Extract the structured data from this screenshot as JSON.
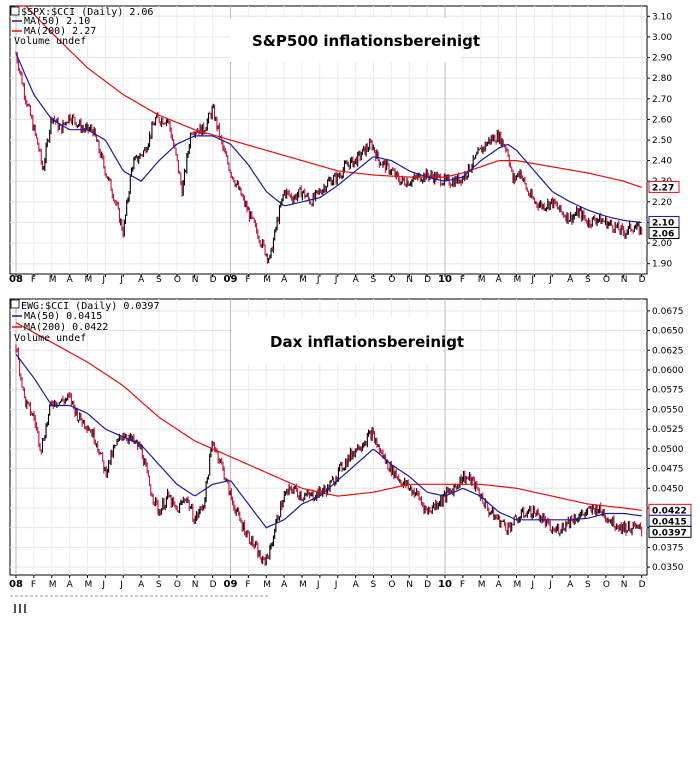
{
  "chart_data": [
    {
      "type": "line",
      "title": "S&P500 inflationsbereinigt",
      "legend": {
        "main": "$SPX:$CCI (Daily) 2.06",
        "ma50": "MA(50) 2.10",
        "ma200": "MA(200) 2.27",
        "volume": "Volume undef"
      },
      "colors": {
        "price": "#000000",
        "down": "#c0143c",
        "ma50": "#1a1aa0",
        "ma200": "#e01010"
      },
      "ylim": [
        1.85,
        3.15
      ],
      "yticks": [
        "3.10",
        "3.00",
        "2.90",
        "2.80",
        "2.70",
        "2.60",
        "2.50",
        "2.40",
        "2.30",
        "2.20",
        "2.10",
        "2.00",
        "1.90"
      ],
      "last_labels": {
        "ma200": "2.27",
        "ma50": "2.10",
        "price": "2.06"
      },
      "x_labels": [
        "08",
        "F",
        "M",
        "A",
        "M",
        "J",
        "J",
        "A",
        "S",
        "O",
        "N",
        "D",
        "09",
        "F",
        "M",
        "A",
        "M",
        "J",
        "J",
        "A",
        "S",
        "O",
        "N",
        "D",
        "10",
        "F",
        "M",
        "A",
        "M",
        "J",
        "J",
        "A",
        "S",
        "O",
        "N",
        "D"
      ],
      "price_anchors": [
        [
          0,
          2.92
        ],
        [
          0.5,
          2.72
        ],
        [
          1.3,
          2.45
        ],
        [
          1.5,
          2.35
        ],
        [
          2.0,
          2.62
        ],
        [
          2.5,
          2.55
        ],
        [
          3.0,
          2.62
        ],
        [
          3.8,
          2.55
        ],
        [
          4.3,
          2.55
        ],
        [
          5.0,
          2.35
        ],
        [
          5.5,
          2.22
        ],
        [
          6.0,
          2.05
        ],
        [
          6.5,
          2.38
        ],
        [
          7.2,
          2.45
        ],
        [
          7.8,
          2.6
        ],
        [
          8.5,
          2.6
        ],
        [
          9.0,
          2.4
        ],
        [
          9.3,
          2.25
        ],
        [
          9.8,
          2.55
        ],
        [
          10.5,
          2.55
        ],
        [
          11.0,
          2.65
        ],
        [
          11.6,
          2.45
        ],
        [
          12.0,
          2.35
        ],
        [
          12.5,
          2.25
        ],
        [
          13.0,
          2.15
        ],
        [
          13.5,
          2.05
        ],
        [
          14.0,
          1.95
        ],
        [
          14.2,
          1.92
        ],
        [
          14.6,
          2.1
        ],
        [
          15.0,
          2.25
        ],
        [
          15.5,
          2.22
        ],
        [
          16.0,
          2.25
        ],
        [
          16.5,
          2.2
        ],
        [
          17.0,
          2.25
        ],
        [
          17.5,
          2.3
        ],
        [
          18.0,
          2.32
        ],
        [
          18.5,
          2.38
        ],
        [
          19.0,
          2.4
        ],
        [
          19.5,
          2.45
        ],
        [
          19.9,
          2.48
        ],
        [
          20.3,
          2.4
        ],
        [
          21.0,
          2.35
        ],
        [
          21.5,
          2.3
        ],
        [
          22.0,
          2.3
        ],
        [
          22.5,
          2.32
        ],
        [
          23.0,
          2.33
        ],
        [
          23.5,
          2.32
        ],
        [
          24.0,
          2.3
        ],
        [
          24.5,
          2.3
        ],
        [
          25.0,
          2.32
        ],
        [
          25.5,
          2.38
        ],
        [
          26.0,
          2.45
        ],
        [
          26.5,
          2.5
        ],
        [
          27.0,
          2.52
        ],
        [
          27.5,
          2.45
        ],
        [
          27.8,
          2.3
        ],
        [
          28.2,
          2.35
        ],
        [
          28.6,
          2.25
        ],
        [
          29.0,
          2.2
        ],
        [
          29.5,
          2.18
        ],
        [
          30.0,
          2.2
        ],
        [
          30.5,
          2.15
        ],
        [
          31.0,
          2.12
        ],
        [
          31.5,
          2.15
        ],
        [
          32.0,
          2.1
        ],
        [
          32.5,
          2.12
        ],
        [
          33.0,
          2.1
        ],
        [
          33.5,
          2.08
        ],
        [
          34.0,
          2.05
        ],
        [
          34.5,
          2.08
        ],
        [
          35.0,
          2.06
        ]
      ],
      "ma50_anchors": [
        [
          0,
          2.92
        ],
        [
          1,
          2.72
        ],
        [
          2,
          2.6
        ],
        [
          3,
          2.55
        ],
        [
          4,
          2.55
        ],
        [
          5,
          2.5
        ],
        [
          6,
          2.35
        ],
        [
          7,
          2.3
        ],
        [
          8,
          2.4
        ],
        [
          9,
          2.48
        ],
        [
          10,
          2.52
        ],
        [
          11,
          2.52
        ],
        [
          12,
          2.48
        ],
        [
          13,
          2.38
        ],
        [
          14,
          2.25
        ],
        [
          15,
          2.18
        ],
        [
          16,
          2.2
        ],
        [
          17,
          2.22
        ],
        [
          18,
          2.28
        ],
        [
          19,
          2.35
        ],
        [
          20,
          2.42
        ],
        [
          21,
          2.4
        ],
        [
          22,
          2.35
        ],
        [
          23,
          2.32
        ],
        [
          24,
          2.3
        ],
        [
          25,
          2.32
        ],
        [
          26,
          2.4
        ],
        [
          27,
          2.46
        ],
        [
          27.5,
          2.48
        ],
        [
          28,
          2.45
        ],
        [
          29,
          2.35
        ],
        [
          30,
          2.25
        ],
        [
          31,
          2.2
        ],
        [
          32,
          2.16
        ],
        [
          33,
          2.13
        ],
        [
          34,
          2.11
        ],
        [
          35,
          2.1
        ]
      ],
      "ma200_anchors": [
        [
          0,
          3.2
        ],
        [
          2,
          3.02
        ],
        [
          4,
          2.85
        ],
        [
          6,
          2.72
        ],
        [
          8,
          2.62
        ],
        [
          10,
          2.55
        ],
        [
          12,
          2.5
        ],
        [
          14,
          2.45
        ],
        [
          16,
          2.4
        ],
        [
          18,
          2.35
        ],
        [
          20,
          2.33
        ],
        [
          22,
          2.32
        ],
        [
          24,
          2.32
        ],
        [
          25,
          2.34
        ],
        [
          26,
          2.37
        ],
        [
          27,
          2.4
        ],
        [
          28,
          2.4
        ],
        [
          30,
          2.37
        ],
        [
          32,
          2.34
        ],
        [
          34,
          2.3
        ],
        [
          35,
          2.27
        ]
      ]
    },
    {
      "type": "line",
      "title": "Dax inflationsbereinigt",
      "legend": {
        "main": "EWG:$CCI (Daily) 0.0397",
        "ma50": "MA(50) 0.0415",
        "ma200": "MA(200) 0.0422",
        "volume": "Volume undef"
      },
      "colors": {
        "price": "#000000",
        "down": "#c0143c",
        "ma50": "#1a1aa0",
        "ma200": "#e01010"
      },
      "ylim": [
        0.034,
        0.069
      ],
      "yticks": [
        "0.0675",
        "0.0650",
        "0.0625",
        "0.0600",
        "0.0575",
        "0.0550",
        "0.0525",
        "0.0500",
        "0.0475",
        "0.0450",
        "0.0425",
        "0.0400",
        "0.0375",
        "0.0350"
      ],
      "last_labels": {
        "ma200": "0.0422",
        "ma50": "0.0415",
        "price": "0.0397"
      },
      "x_labels": [
        "08",
        "F",
        "M",
        "A",
        "M",
        "J",
        "J",
        "A",
        "S",
        "O",
        "N",
        "D",
        "09",
        "F",
        "M",
        "A",
        "M",
        "J",
        "J",
        "A",
        "S",
        "O",
        "N",
        "D",
        "10",
        "F",
        "M",
        "A",
        "M",
        "J",
        "J",
        "A",
        "S",
        "O",
        "N",
        "D"
      ],
      "price_anchors": [
        [
          0,
          0.063
        ],
        [
          0.5,
          0.056
        ],
        [
          1.0,
          0.054
        ],
        [
          1.4,
          0.05
        ],
        [
          2.0,
          0.056
        ],
        [
          2.5,
          0.056
        ],
        [
          3.0,
          0.0565
        ],
        [
          3.5,
          0.054
        ],
        [
          4.0,
          0.053
        ],
        [
          4.5,
          0.051
        ],
        [
          5.0,
          0.047
        ],
        [
          5.5,
          0.05
        ],
        [
          6.0,
          0.052
        ],
        [
          6.5,
          0.051
        ],
        [
          7.0,
          0.05
        ],
        [
          7.5,
          0.045
        ],
        [
          8.0,
          0.042
        ],
        [
          8.5,
          0.044
        ],
        [
          9.0,
          0.042
        ],
        [
          9.5,
          0.044
        ],
        [
          10.0,
          0.041
        ],
        [
          10.5,
          0.043
        ],
        [
          11.0,
          0.051
        ],
        [
          11.5,
          0.048
        ],
        [
          12.0,
          0.044
        ],
        [
          12.5,
          0.041
        ],
        [
          13.0,
          0.039
        ],
        [
          13.5,
          0.037
        ],
        [
          13.8,
          0.0355
        ],
        [
          14.2,
          0.037
        ],
        [
          14.6,
          0.041
        ],
        [
          15.0,
          0.044
        ],
        [
          15.5,
          0.045
        ],
        [
          16.0,
          0.044
        ],
        [
          16.5,
          0.044
        ],
        [
          17.0,
          0.0445
        ],
        [
          17.5,
          0.045
        ],
        [
          18.0,
          0.047
        ],
        [
          18.5,
          0.0485
        ],
        [
          19.0,
          0.05
        ],
        [
          19.5,
          0.051
        ],
        [
          19.9,
          0.052
        ],
        [
          20.3,
          0.05
        ],
        [
          20.8,
          0.048
        ],
        [
          21.5,
          0.046
        ],
        [
          22.0,
          0.045
        ],
        [
          22.5,
          0.044
        ],
        [
          23.0,
          0.042
        ],
        [
          23.5,
          0.043
        ],
        [
          24.0,
          0.044
        ],
        [
          24.5,
          0.045
        ],
        [
          25.0,
          0.0465
        ],
        [
          25.5,
          0.046
        ],
        [
          26.0,
          0.044
        ],
        [
          26.5,
          0.042
        ],
        [
          27.0,
          0.041
        ],
        [
          27.5,
          0.04
        ],
        [
          28.0,
          0.041
        ],
        [
          28.5,
          0.042
        ],
        [
          29.0,
          0.042
        ],
        [
          29.5,
          0.041
        ],
        [
          30.0,
          0.0395
        ],
        [
          30.5,
          0.04
        ],
        [
          31.0,
          0.041
        ],
        [
          31.5,
          0.0415
        ],
        [
          32.0,
          0.042
        ],
        [
          32.5,
          0.0425
        ],
        [
          33.0,
          0.0415
        ],
        [
          33.5,
          0.0405
        ],
        [
          34.0,
          0.04
        ],
        [
          34.5,
          0.04
        ],
        [
          35.0,
          0.0397
        ]
      ],
      "ma50_anchors": [
        [
          0,
          0.062
        ],
        [
          1,
          0.059
        ],
        [
          2,
          0.0555
        ],
        [
          3,
          0.0555
        ],
        [
          4,
          0.0545
        ],
        [
          5,
          0.0525
        ],
        [
          6,
          0.0515
        ],
        [
          7,
          0.0505
        ],
        [
          8,
          0.048
        ],
        [
          9,
          0.0455
        ],
        [
          10,
          0.044
        ],
        [
          11,
          0.0455
        ],
        [
          12,
          0.046
        ],
        [
          13,
          0.043
        ],
        [
          14,
          0.04
        ],
        [
          15,
          0.041
        ],
        [
          16,
          0.043
        ],
        [
          17,
          0.044
        ],
        [
          18,
          0.046
        ],
        [
          19,
          0.048
        ],
        [
          20,
          0.05
        ],
        [
          21,
          0.048
        ],
        [
          22,
          0.0465
        ],
        [
          23,
          0.0445
        ],
        [
          24,
          0.044
        ],
        [
          25,
          0.045
        ],
        [
          26,
          0.044
        ],
        [
          27,
          0.042
        ],
        [
          28,
          0.041
        ],
        [
          29,
          0.041
        ],
        [
          30,
          0.041
        ],
        [
          31,
          0.041
        ],
        [
          32,
          0.0412
        ],
        [
          33,
          0.0418
        ],
        [
          34,
          0.0418
        ],
        [
          35,
          0.0415
        ]
      ],
      "ma200_anchors": [
        [
          0,
          0.066
        ],
        [
          2,
          0.0635
        ],
        [
          4,
          0.061
        ],
        [
          6,
          0.058
        ],
        [
          8,
          0.054
        ],
        [
          10,
          0.051
        ],
        [
          12,
          0.049
        ],
        [
          14,
          0.047
        ],
        [
          16,
          0.045
        ],
        [
          18,
          0.044
        ],
        [
          20,
          0.0445
        ],
        [
          22,
          0.0455
        ],
        [
          24,
          0.0455
        ],
        [
          26,
          0.0455
        ],
        [
          28,
          0.045
        ],
        [
          30,
          0.044
        ],
        [
          32,
          0.043
        ],
        [
          34,
          0.0425
        ],
        [
          35,
          0.0422
        ]
      ]
    }
  ]
}
